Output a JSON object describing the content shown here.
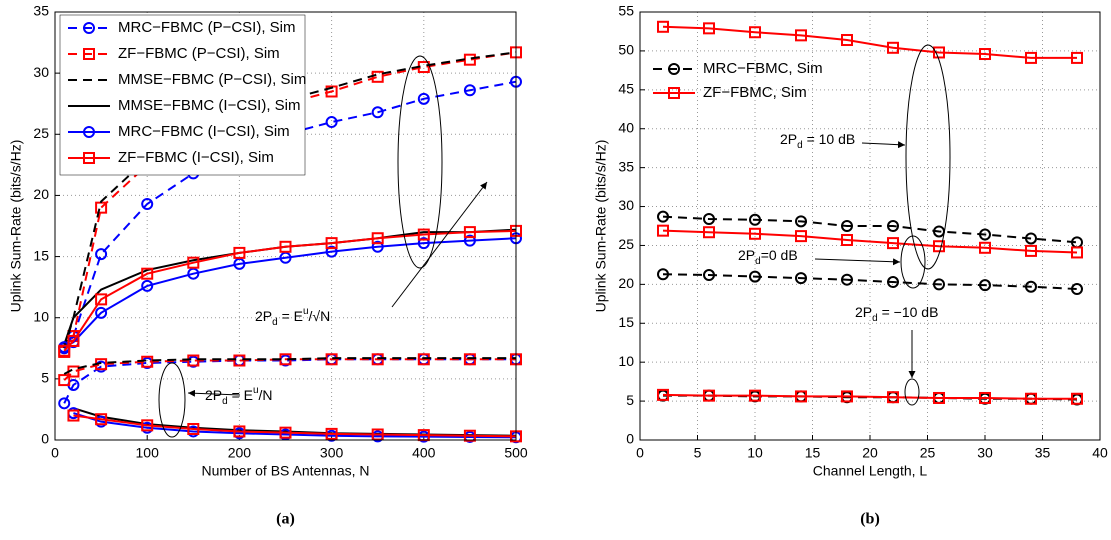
{
  "chart_data": [
    {
      "type": "line",
      "caption": "(a)",
      "xlabel": "Number of BS Antennas, N",
      "ylabel": "Uplink Sum-Rate (bits/s/Hz)",
      "xlim": [
        0,
        500
      ],
      "xticks": [
        0,
        100,
        200,
        300,
        400,
        500
      ],
      "ylim": [
        0,
        35
      ],
      "yticks": [
        0,
        5,
        10,
        15,
        20,
        25,
        30,
        35
      ],
      "grid": true,
      "legend": "upper left",
      "x": [
        10,
        20,
        50,
        100,
        150,
        200,
        250,
        300,
        350,
        400,
        450,
        500
      ],
      "series": [
        {
          "name": "MRC−FBMC (P−CSI), Sim",
          "color": "#0000ff",
          "dashed": true,
          "marker": "circle",
          "values": [
            [
              7.5,
              8.5,
              15.2,
              19.3,
              21.8,
              23.5,
              25.0,
              26.0,
              26.8,
              27.9,
              28.6,
              29.3
            ],
            [
              3.0,
              4.5,
              6.0,
              6.3,
              6.4,
              6.5,
              6.5,
              6.6,
              6.6,
              6.6,
              6.6,
              6.6
            ]
          ]
        },
        {
          "name": "ZF−FBMC (P−CSI), Sim",
          "color": "#ff0000",
          "dashed": true,
          "marker": "square",
          "values": [
            [
              7.2,
              8.5,
              19.0,
              22.5,
              24.5,
              26.0,
              27.5,
              28.5,
              29.7,
              30.5,
              31.1,
              31.7
            ],
            [
              4.9,
              5.6,
              6.2,
              6.4,
              6.5,
              6.5,
              6.6,
              6.6,
              6.6,
              6.6,
              6.6,
              6.6
            ]
          ]
        },
        {
          "name": "MMSE−FBMC (P−CSI), Sim",
          "color": "#000000",
          "dashed": true,
          "marker": "none",
          "values": [
            [
              7.5,
              10.0,
              19.5,
              23.0,
              25.0,
              26.4,
              27.8,
              28.8,
              29.9,
              30.6,
              31.2,
              31.7
            ],
            [
              5.4,
              5.8,
              6.3,
              6.5,
              6.6,
              6.6,
              6.6,
              6.7,
              6.7,
              6.7,
              6.7,
              6.7
            ]
          ]
        },
        {
          "name": "MMSE−FBMC (I−CSI), Sim",
          "color": "#000000",
          "dashed": false,
          "marker": "none",
          "values": [
            [
              7.8,
              10.0,
              12.3,
              13.9,
              14.7,
              15.3,
              15.8,
              16.1,
              16.5,
              17.0,
              17.0,
              17.2
            ],
            [
              null,
              2.6,
              1.9,
              1.3,
              1.0,
              0.8,
              0.7,
              0.55,
              0.5,
              0.45,
              0.4,
              0.35
            ]
          ]
        },
        {
          "name": "MRC−FBMC (I−CSI), Sim",
          "color": "#0000ff",
          "dashed": false,
          "marker": "circle",
          "values": [
            [
              7.6,
              8.0,
              10.4,
              12.6,
              13.6,
              14.4,
              14.9,
              15.4,
              15.8,
              16.1,
              16.3,
              16.5
            ],
            [
              null,
              2.2,
              1.5,
              1.0,
              0.7,
              0.55,
              0.45,
              0.35,
              0.3,
              0.28,
              0.25,
              0.22
            ]
          ]
        },
        {
          "name": "ZF−FBMC (I−CSI), Sim",
          "color": "#ff0000",
          "dashed": false,
          "marker": "square",
          "values": [
            [
              7.3,
              8.1,
              11.5,
              13.6,
              14.5,
              15.3,
              15.8,
              16.1,
              16.5,
              16.8,
              17.0,
              17.1
            ],
            [
              null,
              2.0,
              1.7,
              1.2,
              0.9,
              0.7,
              0.6,
              0.5,
              0.45,
              0.4,
              0.35,
              0.3
            ]
          ]
        }
      ],
      "annotations": [
        {
          "text": [
            {
              "t": "2P"
            },
            {
              "t": "d",
              "sub": true
            },
            {
              "t": " = E"
            },
            {
              "t": "u",
              "sup": true
            },
            {
              "t": "/√N"
            }
          ]
        },
        {
          "text": [
            {
              "t": "2P"
            },
            {
              "t": "d",
              "sub": true
            },
            {
              "t": " = E"
            },
            {
              "t": "u",
              "sup": true
            },
            {
              "t": "/N"
            }
          ]
        }
      ]
    },
    {
      "type": "line",
      "caption": "(b)",
      "xlabel": "Channel Length, L",
      "ylabel": "Uplink Sum-Rate (bits/s/Hz)",
      "xlim": [
        0,
        40
      ],
      "xticks": [
        0,
        5,
        10,
        15,
        20,
        25,
        30,
        35,
        40
      ],
      "ylim": [
        0,
        55
      ],
      "yticks": [
        0,
        5,
        10,
        15,
        20,
        25,
        30,
        35,
        40,
        45,
        50,
        55
      ],
      "grid": true,
      "legend": "upper left",
      "x": [
        2,
        6,
        10,
        14,
        18,
        22,
        26,
        30,
        34,
        38
      ],
      "series": [
        {
          "name": "MRC−FBMC, Sim",
          "color": "#000000",
          "dashed": true,
          "marker": "circle",
          "values": [
            [
              28.7,
              28.4,
              28.3,
              28.1,
              27.5,
              27.5,
              26.8,
              26.4,
              25.9,
              25.4
            ],
            [
              21.3,
              21.2,
              21.0,
              20.8,
              20.6,
              20.3,
              20.0,
              19.9,
              19.7,
              19.4
            ],
            [
              5.7,
              5.7,
              5.6,
              5.6,
              5.5,
              5.5,
              5.4,
              5.3,
              5.3,
              5.2
            ]
          ]
        },
        {
          "name": "ZF−FBMC, Sim",
          "color": "#ff0000",
          "dashed": false,
          "marker": "square",
          "values": [
            [
              53.1,
              52.9,
              52.4,
              52.0,
              51.4,
              50.4,
              49.8,
              49.6,
              49.1,
              49.1
            ],
            [
              26.9,
              26.7,
              26.5,
              26.2,
              25.7,
              25.3,
              24.9,
              24.7,
              24.3,
              24.1
            ],
            [
              5.8,
              5.7,
              5.7,
              5.6,
              5.6,
              5.5,
              5.4,
              5.4,
              5.3,
              5.3
            ]
          ]
        }
      ],
      "annotations": [
        {
          "text": [
            {
              "t": "2P"
            },
            {
              "t": "d",
              "sub": true
            },
            {
              "t": " = 10 dB"
            }
          ]
        },
        {
          "text": [
            {
              "t": "2P"
            },
            {
              "t": "d",
              "sub": true
            },
            {
              "t": "=0 dB"
            }
          ]
        },
        {
          "text": [
            {
              "t": "2P"
            },
            {
              "t": "d",
              "sub": true
            },
            {
              "t": " = −10 dB"
            }
          ]
        }
      ]
    }
  ]
}
